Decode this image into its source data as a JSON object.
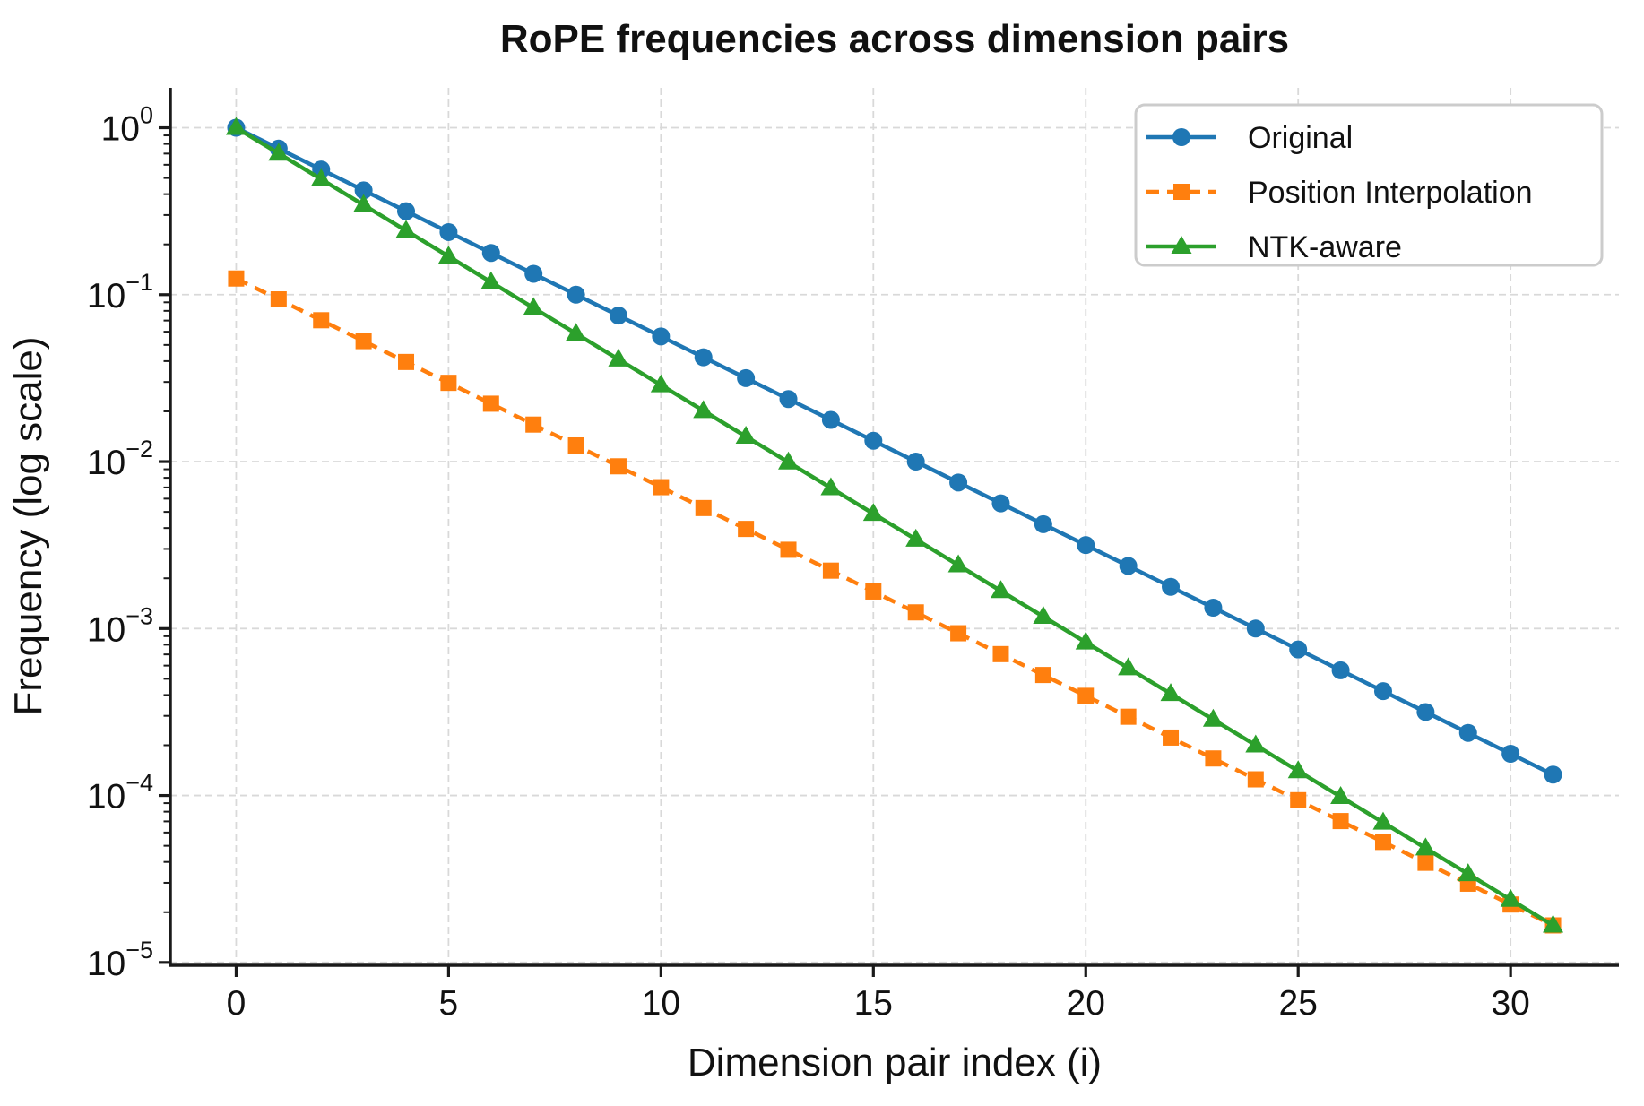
{
  "title": "RoPE frequencies across dimension pairs",
  "chart_data": {
    "type": "line",
    "title": "RoPE frequencies across dimension pairs",
    "xlabel": "Dimension pair index (i)",
    "ylabel": "Frequency (log scale)",
    "yscale": "log",
    "grid": true,
    "legend_position": "upper right",
    "xlim": [
      -1.55,
      32.55
    ],
    "ylim_log10": [
      -5.017,
      0.239
    ],
    "x_ticks": [
      0,
      5,
      10,
      15,
      20,
      25,
      30
    ],
    "y_tick_exponents": [
      0,
      -1,
      -2,
      -3,
      -4,
      -5
    ],
    "x": [
      0,
      1,
      2,
      3,
      4,
      5,
      6,
      7,
      8,
      9,
      10,
      11,
      12,
      13,
      14,
      15,
      16,
      17,
      18,
      19,
      20,
      21,
      22,
      23,
      24,
      25,
      26,
      27,
      28,
      29,
      30,
      31
    ],
    "series": [
      {
        "name": "Original",
        "color": "#1f77b4",
        "marker": "circle",
        "linestyle": "solid",
        "values": [
          1.0,
          0.7499,
          0.5623,
          0.4217,
          0.3162,
          0.2371,
          0.1778,
          0.1334,
          0.1,
          0.07499,
          0.05623,
          0.04217,
          0.03162,
          0.02371,
          0.01778,
          0.01334,
          0.01,
          0.007499,
          0.005623,
          0.004217,
          0.003162,
          0.002371,
          0.001778,
          0.001334,
          0.001,
          0.0007499,
          0.0005623,
          0.0004217,
          0.0003162,
          0.0002371,
          0.0001778,
          0.0001334
        ]
      },
      {
        "name": "Position Interpolation",
        "color": "#ff7f0e",
        "marker": "square",
        "linestyle": "dashed",
        "values": [
          0.125,
          0.09374,
          0.07029,
          0.05271,
          0.03953,
          0.02964,
          0.02223,
          0.01667,
          0.0125,
          0.009374,
          0.007029,
          0.005271,
          0.003953,
          0.002964,
          0.002223,
          0.001667,
          0.00125,
          0.0009374,
          0.0007029,
          0.0005271,
          0.0003953,
          0.0002964,
          0.0002223,
          0.0001667,
          0.000125,
          9.374e-05,
          7.029e-05,
          5.271e-05,
          3.953e-05,
          2.964e-05,
          2.223e-05,
          1.667e-05
        ]
      },
      {
        "name": "NTK-aware",
        "color": "#2ca02c",
        "marker": "triangle",
        "linestyle": "solid",
        "values": [
          1.0,
          0.7012,
          0.4917,
          0.3448,
          0.2418,
          0.1695,
          0.1189,
          0.08337,
          0.05846,
          0.041,
          0.02875,
          0.02016,
          0.01414,
          0.009915,
          0.006953,
          0.004876,
          0.003419,
          0.002398,
          0.001681,
          0.001179,
          0.000827,
          0.0005799,
          0.0004067,
          0.0002852,
          0.0002,
          0.0001402,
          9.831e-05,
          6.894e-05,
          4.834e-05,
          3.39e-05,
          2.378e-05,
          1.667e-05
        ]
      }
    ]
  },
  "style": {
    "grid_color": "#d9d9d9",
    "spine_color": "#1a1a1a",
    "legend_border_color": "#cccccc",
    "background": "#ffffff"
  }
}
